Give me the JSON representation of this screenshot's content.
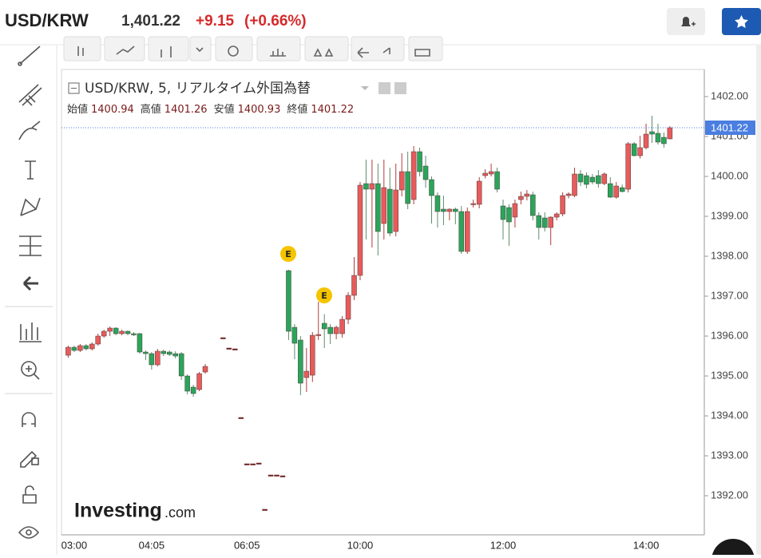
{
  "header": {
    "symbol": "USD/KRW",
    "price": "1,401.22",
    "change": "+9.15",
    "change_pct": "(+0.66%)"
  },
  "chart_data": {
    "type": "candlestick",
    "title": "USD/KRW, 5, リアルタイム外国為替",
    "ohlc_legend": [
      [
        "始値",
        "1400.94"
      ],
      [
        "高値",
        "1401.26"
      ],
      [
        "安値",
        "1400.93"
      ],
      [
        "終値",
        "1401.22"
      ]
    ],
    "watermark": "Investing",
    "watermark_suffix": ".com",
    "events": [
      "E",
      "E"
    ],
    "up_color": "#e85b5b",
    "down_color": "#2aa55a",
    "flat_color": "#6d1f1f",
    "last_price": 1401.22,
    "last_price_color": "#4a7ee0",
    "categories": [
      null,
      "03:00",
      null,
      null,
      null,
      null,
      null,
      null,
      null,
      null,
      null,
      null,
      null,
      null,
      "04:05",
      null,
      null,
      null,
      null,
      null,
      null,
      null,
      null,
      null,
      null,
      null,
      null,
      null,
      null,
      null,
      "06:05",
      null,
      null,
      null,
      null,
      null,
      null,
      null,
      null,
      null,
      null,
      null,
      null,
      null,
      null,
      null,
      null,
      null,
      null,
      "10:00",
      null,
      null,
      null,
      null,
      null,
      null,
      null,
      null,
      null,
      null,
      null,
      null,
      null,
      null,
      null,
      null,
      null,
      null,
      null,
      null,
      null,
      null,
      null,
      "12:00",
      null,
      null,
      null,
      null,
      null,
      null,
      null,
      null,
      null,
      null,
      null,
      null,
      null,
      null,
      null,
      null,
      null,
      null,
      null,
      null,
      null,
      null,
      null,
      "14:00",
      null,
      null,
      null,
      null
    ],
    "open": [
      1395.52,
      1395.72,
      1395.64,
      1395.76,
      1395.68,
      1395.8,
      1396.0,
      1396.12,
      1396.2,
      1396.06,
      1396.12,
      1396.06,
      1396.06,
      1395.6,
      1395.56,
      1395.28,
      1395.62,
      1395.6,
      1395.56,
      1395.56,
      1395.0,
      1394.72,
      1394.66,
      1395.1,
      null,
      null,
      1395.96,
      1395.7,
      1395.68,
      1393.96,
      1392.8,
      1392.8,
      1392.82,
      1391.66,
      1392.52,
      1392.52,
      1392.5,
      1397.64,
      1396.22,
      1395.9,
      1394.96,
      1395.02,
      1396.02,
      1396.32,
      1396.22,
      1396.06,
      1396.06,
      1396.42,
      1397.02,
      1397.52,
      1399.82,
      1399.68,
      1399.82,
      1398.82,
      1399.68,
      1398.62,
      1399.66,
      1400.12,
      1399.42,
      1400.62,
      1400.26,
      1399.92,
      1399.52,
      1399.18,
      1399.12,
      1399.18,
      1399.12,
      1398.12,
      1399.3,
      1399.3,
      1400.02,
      1400.06,
      1400.12,
      1399.26,
      1399.22,
      1398.98,
      1399.42,
      1399.5,
      1399.54,
      1399.02,
      1398.96,
      1398.72,
      1398.98,
      1399.06,
      1399.52,
      1399.52,
      1400.06,
      1400.02,
      1399.98,
      1400.02,
      1399.82,
      1399.82,
      1399.48,
      1399.72,
      1399.68,
      1400.82,
      1400.52,
      1400.72,
      1401.12,
      1401.08,
      1400.98,
      1400.94
    ],
    "high": [
      1395.76,
      1395.76,
      1395.8,
      1395.8,
      1395.84,
      1396.06,
      1396.16,
      1396.24,
      1396.22,
      1396.16,
      1396.14,
      1396.1,
      1396.08,
      1395.64,
      1395.6,
      1395.68,
      1395.66,
      1395.64,
      1395.62,
      1395.6,
      1395.04,
      1394.78,
      1395.1,
      1395.3,
      null,
      null,
      1395.96,
      1395.7,
      1395.68,
      1393.96,
      1392.8,
      1392.8,
      1392.82,
      1391.66,
      1392.52,
      1392.52,
      1392.5,
      1397.66,
      1396.3,
      1396.0,
      1395.7,
      1396.1,
      1396.86,
      1396.55,
      1396.3,
      1396.26,
      1396.5,
      1397.1,
      1397.98,
      1399.86,
      1400.42,
      1400.42,
      1400.32,
      1400.42,
      1400.22,
      1400.32,
      1400.58,
      1400.62,
      1400.76,
      1400.72,
      1400.52,
      1400.0,
      1399.6,
      1399.52,
      1399.2,
      1399.22,
      1399.26,
      1399.22,
      1399.42,
      1399.98,
      1400.18,
      1400.32,
      1400.22,
      1399.42,
      1399.3,
      1399.42,
      1399.62,
      1399.66,
      1399.62,
      1399.1,
      1399.1,
      1399.0,
      1399.1,
      1399.6,
      1399.6,
      1400.22,
      1400.16,
      1400.1,
      1400.06,
      1400.16,
      1400.1,
      1399.98,
      1399.86,
      1399.8,
      1400.86,
      1400.86,
      1401.02,
      1401.32,
      1401.52,
      1401.32,
      1401.1,
      1401.26
    ],
    "low": [
      1395.46,
      1395.6,
      1395.6,
      1395.64,
      1395.64,
      1395.76,
      1395.96,
      1396.0,
      1396.02,
      1396.02,
      1396.02,
      1396.0,
      1395.56,
      1395.4,
      1395.16,
      1395.24,
      1395.5,
      1395.5,
      1395.44,
      1394.9,
      1394.54,
      1394.48,
      1394.62,
      1395.06,
      null,
      null,
      1395.96,
      1395.7,
      1395.68,
      1393.96,
      1392.8,
      1392.8,
      1392.82,
      1391.66,
      1392.52,
      1392.52,
      1392.5,
      1395.9,
      1395.42,
      1394.52,
      1394.6,
      1394.85,
      1395.9,
      1395.7,
      1395.8,
      1395.92,
      1395.96,
      1396.3,
      1396.9,
      1397.4,
      1398.42,
      1398.22,
      1398.02,
      1398.42,
      1398.5,
      1398.5,
      1399.5,
      1399.18,
      1399.3,
      1400.0,
      1399.72,
      1398.82,
      1398.72,
      1398.78,
      1398.9,
      1398.8,
      1398.06,
      1398.06,
      1399.22,
      1399.2,
      1399.95,
      1400.0,
      1399.6,
      1398.42,
      1398.26,
      1398.72,
      1399.3,
      1399.4,
      1398.9,
      1398.42,
      1398.62,
      1398.28,
      1398.9,
      1399.0,
      1399.45,
      1399.48,
      1399.76,
      1399.7,
      1399.8,
      1399.72,
      1399.78,
      1399.46,
      1399.44,
      1399.6,
      1399.6,
      1400.5,
      1400.45,
      1400.68,
      1400.84,
      1400.8,
      1400.72,
      1400.93
    ],
    "close": [
      1395.72,
      1395.64,
      1395.76,
      1395.68,
      1395.8,
      1396.0,
      1396.12,
      1396.2,
      1396.06,
      1396.12,
      1396.06,
      1396.04,
      1395.6,
      1395.56,
      1395.28,
      1395.62,
      1395.56,
      1395.54,
      1395.5,
      1395.0,
      1394.62,
      1394.56,
      1395.06,
      1395.24,
      null,
      null,
      1395.96,
      1395.7,
      1395.68,
      1393.96,
      1392.8,
      1392.8,
      1392.82,
      1391.66,
      1392.52,
      1392.52,
      1392.5,
      1396.12,
      1395.82,
      1394.82,
      1395.12,
      1396.02,
      1396.04,
      1396.18,
      1396.06,
      1396.22,
      1396.42,
      1397.02,
      1397.52,
      1399.78,
      1399.68,
      1399.82,
      1398.62,
      1399.72,
      1398.58,
      1399.66,
      1400.12,
      1399.32,
      1400.62,
      1400.12,
      1399.92,
      1399.52,
      1399.12,
      1399.12,
      1399.18,
      1399.12,
      1398.12,
      1399.12,
      1399.32,
      1399.88,
      1400.08,
      1400.12,
      1399.68,
      1398.92,
      1398.86,
      1399.32,
      1399.5,
      1399.56,
      1399.02,
      1398.72,
      1398.72,
      1398.98,
      1399.06,
      1399.52,
      1399.56,
      1400.06,
      1399.86,
      1399.8,
      1399.86,
      1399.82,
      1400.06,
      1399.48,
      1399.76,
      1399.62,
      1400.82,
      1400.52,
      1400.72,
      1401.06,
      1401.06,
      1400.86,
      1400.82,
      1401.22
    ],
    "ylim": [
      1391.02,
      1402.68
    ],
    "yticks": [
      {
        "value": 1392,
        "label": "1392.00"
      },
      {
        "value": 1393,
        "label": "1393.00"
      },
      {
        "value": 1394,
        "label": "1394.00"
      },
      {
        "value": 1395,
        "label": "1395.00"
      },
      {
        "value": 1396,
        "label": "1396.00"
      },
      {
        "value": 1397,
        "label": "1397.00"
      },
      {
        "value": 1398,
        "label": "1398.00"
      },
      {
        "value": 1399,
        "label": "1399.00"
      },
      {
        "value": 1400,
        "label": "1400.00"
      },
      {
        "value": 1401,
        "label": "1401.00"
      },
      {
        "value": 1402,
        "label": "1402.00"
      }
    ]
  }
}
